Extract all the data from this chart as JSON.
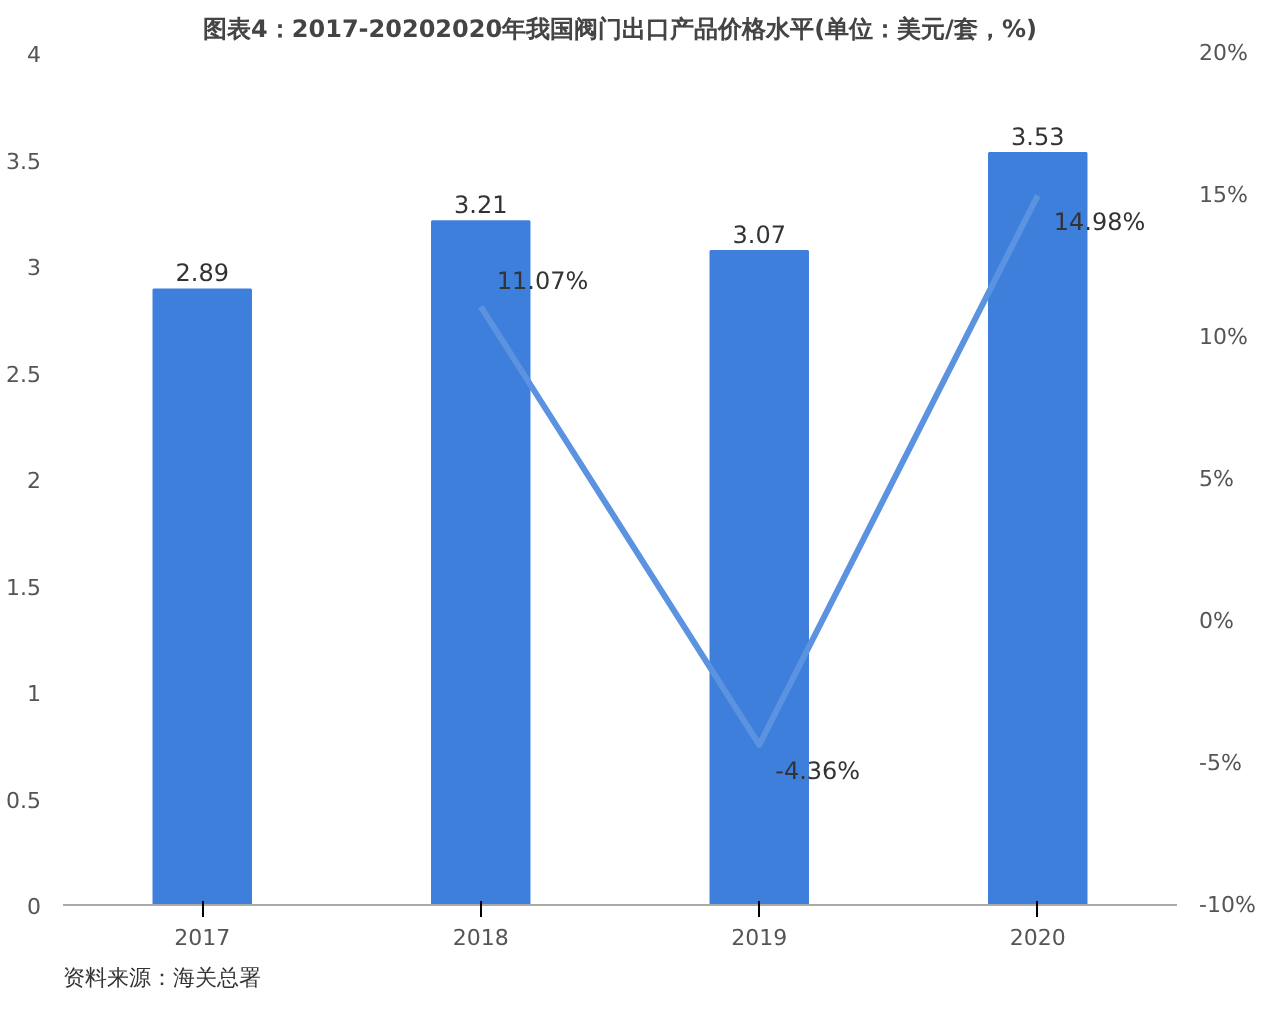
{
  "chart_data": {
    "type": "bar",
    "title": "图表4：2017-20202020年我国阀门出口产品价格水平(单位：美元/套，%)",
    "categories": [
      "2017",
      "2018",
      "2019",
      "2020"
    ],
    "series": [
      {
        "color": "#3f7fdc",
        "values": [
          2.89,
          3.21,
          3.07,
          3.53
        ]
      },
      {
        "type": "line",
        "axis": "y2",
        "color": "#5b93e0",
        "values": [
          null,
          11.07,
          -4.36,
          14.98
        ],
        "value_labels": [
          null,
          "11.07%",
          "-4.36%",
          "14.98%"
        ]
      }
    ],
    "data_labels": true,
    "ylim": [
      0,
      4
    ],
    "yticks": [
      0,
      0.5,
      1,
      1.5,
      2,
      2.5,
      3,
      3.5,
      4
    ],
    "y2lim": [
      -10,
      20
    ],
    "y2ticks": [
      {
        "value": -10,
        "label": "-10%"
      },
      {
        "value": -5,
        "label": "-5%"
      },
      {
        "value": 0,
        "label": "0%"
      },
      {
        "value": 5,
        "label": "5%"
      },
      {
        "value": 10,
        "label": "10%"
      },
      {
        "value": 15,
        "label": "15%"
      },
      {
        "value": 20,
        "label": "20%"
      }
    ],
    "grid": false,
    "marker": "none",
    "line_style": "solid",
    "annotations": [
      "资料来源：海关总署"
    ]
  }
}
